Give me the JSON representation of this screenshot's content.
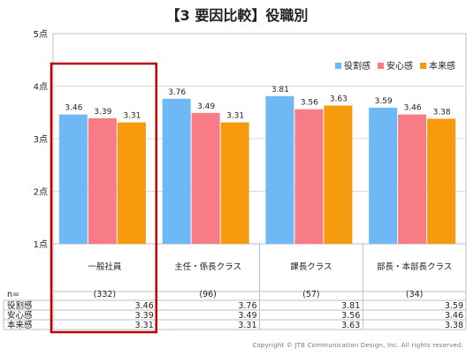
{
  "title": "【3 要因比較】役職別",
  "copyright": "Copyright © JTB Communication Design, Inc. All rights reserved.",
  "n_label": "n=",
  "chart_data": {
    "type": "bar",
    "categories": [
      "一般社員",
      "主任・係長クラス",
      "課長クラス",
      "部長・本部長クラス"
    ],
    "n": [
      "(332)",
      "(96)",
      "(57)",
      "(34)"
    ],
    "series": [
      {
        "name": "役割感",
        "color": "#6EB8F5",
        "values": [
          3.46,
          3.76,
          3.81,
          3.59
        ]
      },
      {
        "name": "安心感",
        "color": "#F77C86",
        "values": [
          3.39,
          3.49,
          3.56,
          3.46
        ]
      },
      {
        "name": "本来感",
        "color": "#F59A0C",
        "values": [
          3.31,
          3.31,
          3.63,
          3.38
        ]
      }
    ],
    "yticks": [
      "1点",
      "2点",
      "3点",
      "4点",
      "5点"
    ],
    "ylim": [
      1,
      5
    ],
    "grid": true,
    "legend_position": "top-right",
    "highlight_category": "一般社員",
    "highlight_color": "#C00000"
  }
}
